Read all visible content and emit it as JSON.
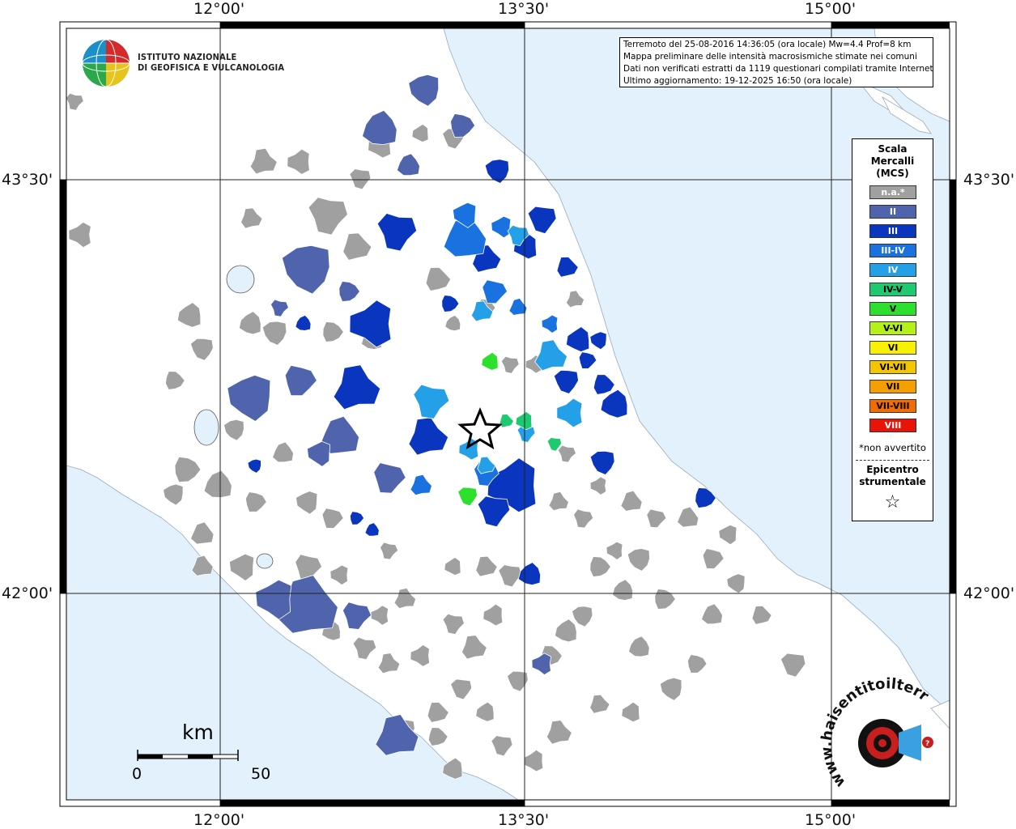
{
  "coords": {
    "top": [
      "12°00'",
      "13°30'",
      "15°00'"
    ],
    "bottom": [
      "12°00'",
      "13°30'",
      "15°00'"
    ],
    "left": [
      "43°30'",
      "42°00'"
    ],
    "right": [
      "43°30'",
      "42°00'"
    ]
  },
  "logo": {
    "line1": "ISTITUTO NAZIONALE",
    "line2": "DI GEOFISICA E VULCANOLOGIA"
  },
  "info": [
    "Terremoto del 25-08-2016 14:36:05 (ora locale) Mw=4.4 Prof=8 km",
    "Mappa preliminare delle intensità macrosismiche stimate nei comuni",
    "Dati non verificati estratti da 1119 questionari compilati tramite Internet.",
    "Ultimo aggiornamento: 19-12-2025 16:50 (ora locale)"
  ],
  "legend": {
    "title_lines": [
      "Scala",
      "Mercalli",
      "(MCS)"
    ],
    "items": [
      {
        "label": "n.a.*",
        "color": "#a0a0a0",
        "text_color": "#ffffff"
      },
      {
        "label": "II",
        "color": "#4f64ad",
        "text_color": "#ffffff"
      },
      {
        "label": "III",
        "color": "#0a35bf",
        "text_color": "#ffffff"
      },
      {
        "label": "III-IV",
        "color": "#1a72e0",
        "text_color": "#ffffff"
      },
      {
        "label": "IV",
        "color": "#24a0e8",
        "text_color": "#ffffff"
      },
      {
        "label": "IV-V",
        "color": "#1fc96f",
        "text_color": "#000000"
      },
      {
        "label": "V",
        "color": "#2de02d",
        "text_color": "#000000"
      },
      {
        "label": "V-VI",
        "color": "#b6f01a",
        "text_color": "#000000"
      },
      {
        "label": "VI",
        "color": "#f7f000",
        "text_color": "#000000"
      },
      {
        "label": "VI-VII",
        "color": "#f5c500",
        "text_color": "#000000"
      },
      {
        "label": "VII",
        "color": "#f59e00",
        "text_color": "#000000"
      },
      {
        "label": "VII-VIII",
        "color": "#f26c00",
        "text_color": "#000000"
      },
      {
        "label": "VIII",
        "color": "#e8140a",
        "text_color": "#ffffff"
      }
    ],
    "note": "*non avvertito",
    "epicentre_lines": [
      "Epicentro",
      "strumentale"
    ],
    "epicentre_symbol": "☆"
  },
  "scalebar": {
    "unit": "km",
    "start": "0",
    "end": "50"
  },
  "colors": {
    "sea": "#e2f1fb",
    "land": "#ffffff",
    "border": "#000000"
  },
  "watermark": {
    "text": "haisentitoilterremoto.it",
    "text_rendered": "www.haisentitoilterremoto.it"
  }
}
